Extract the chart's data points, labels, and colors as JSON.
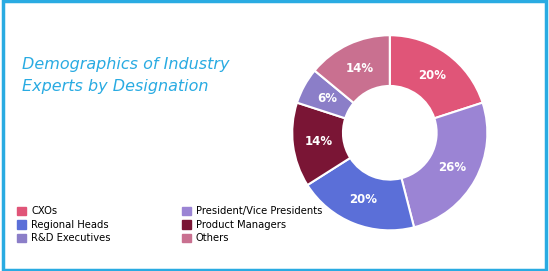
{
  "title": "Demographics of Industry\nExperts by Designation",
  "title_color": "#29ABE2",
  "slices": [
    {
      "label": "CXOs",
      "value": 20,
      "color": "#E05578",
      "pct": "20%"
    },
    {
      "label": "President/Vice Presidents",
      "value": 26,
      "color": "#9B84D4",
      "pct": "26%"
    },
    {
      "label": "Regional Heads",
      "value": 20,
      "color": "#5B6FD8",
      "pct": "20%"
    },
    {
      "label": "Product Managers",
      "value": 14,
      "color": "#7A1535",
      "pct": "14%"
    },
    {
      "label": "R&D Executives",
      "value": 6,
      "color": "#8B7EC8",
      "pct": "6%"
    },
    {
      "label": "Others",
      "value": 14,
      "color": "#C97090",
      "pct": "14%"
    }
  ],
  "background_color": "#FFFFFF",
  "border_color": "#29ABE2",
  "text_color": "#FFFFFF",
  "label_fontsize": 8.5,
  "title_fontsize": 11.5
}
